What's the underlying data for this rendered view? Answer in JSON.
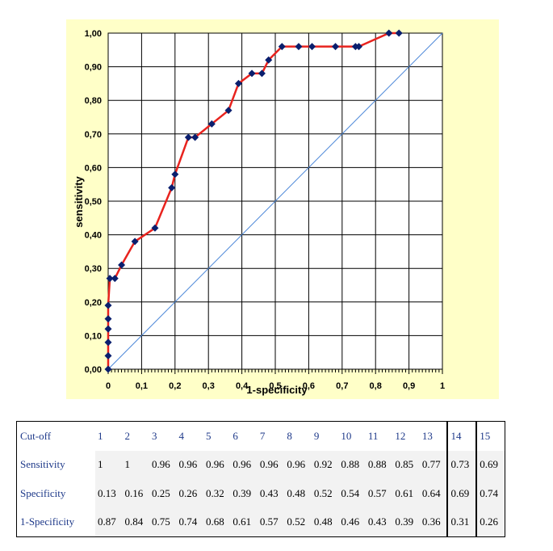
{
  "chart_data": {
    "type": "line",
    "xlabel": "1-specificity",
    "ylabel": "sensitivity",
    "xlim": [
      0,
      1
    ],
    "ylim": [
      0,
      1
    ],
    "x_ticks": [
      "0",
      "0,1",
      "0,2",
      "0,3",
      "0,4",
      "0,5",
      "0,6",
      "0,7",
      "0,8",
      "0,9",
      "1"
    ],
    "y_ticks": [
      "0,00",
      "0,10",
      "0,20",
      "0,30",
      "0,40",
      "0,50",
      "0,60",
      "0,70",
      "0,80",
      "0,90",
      "1,00"
    ],
    "grid": true,
    "series": [
      {
        "color": "#e8231e",
        "marker_color": "#0a1f6e",
        "x": [
          0,
          0,
          0,
          0,
          0,
          0,
          0.005,
          0.02,
          0.04,
          0.08,
          0.14,
          0.19,
          0.2,
          0.24,
          0.26,
          0.31,
          0.36,
          0.39,
          0.43,
          0.46,
          0.48,
          0.52,
          0.57,
          0.61,
          0.68,
          0.74,
          0.75,
          0.84,
          0.87
        ],
        "y": [
          0,
          0.04,
          0.08,
          0.12,
          0.15,
          0.19,
          0.27,
          0.27,
          0.31,
          0.38,
          0.42,
          0.54,
          0.58,
          0.69,
          0.69,
          0.73,
          0.77,
          0.85,
          0.88,
          0.88,
          0.92,
          0.96,
          0.96,
          0.96,
          0.96,
          0.96,
          0.96,
          1.0,
          1.0
        ]
      },
      {
        "color": "#4a86d8",
        "x": [
          0,
          1
        ],
        "y": [
          0,
          1
        ]
      }
    ]
  },
  "table": {
    "header_label": "Cut-off",
    "cutoffs": [
      "1",
      "2",
      "3",
      "4",
      "5",
      "6",
      "7",
      "8",
      "9",
      "10",
      "11",
      "12",
      "13",
      "14",
      "15"
    ],
    "rows": [
      {
        "label": "Sensitivity",
        "values": [
          "1",
          "1",
          "0.96",
          "0.96",
          "0.96",
          "0.96",
          "0.96",
          "0.96",
          "0.92",
          "0.88",
          "0.88",
          "0.85",
          "0.77",
          "0.73",
          "0.69"
        ]
      },
      {
        "label": "Specificity",
        "values": [
          "0.13",
          "0.16",
          "0.25",
          "0.26",
          "0.32",
          "0.39",
          "0.43",
          "0.48",
          "0.52",
          "0.54",
          "0.57",
          "0.61",
          "0.64",
          "0.69",
          "0.74"
        ]
      },
      {
        "label": "1-Specificity",
        "values": [
          "0.87",
          "0.84",
          "0.75",
          "0.74",
          "0.68",
          "0.61",
          "0.57",
          "0.52",
          "0.48",
          "0.46",
          "0.43",
          "0.39",
          "0.36",
          "0.31",
          "0.26"
        ]
      }
    ]
  }
}
